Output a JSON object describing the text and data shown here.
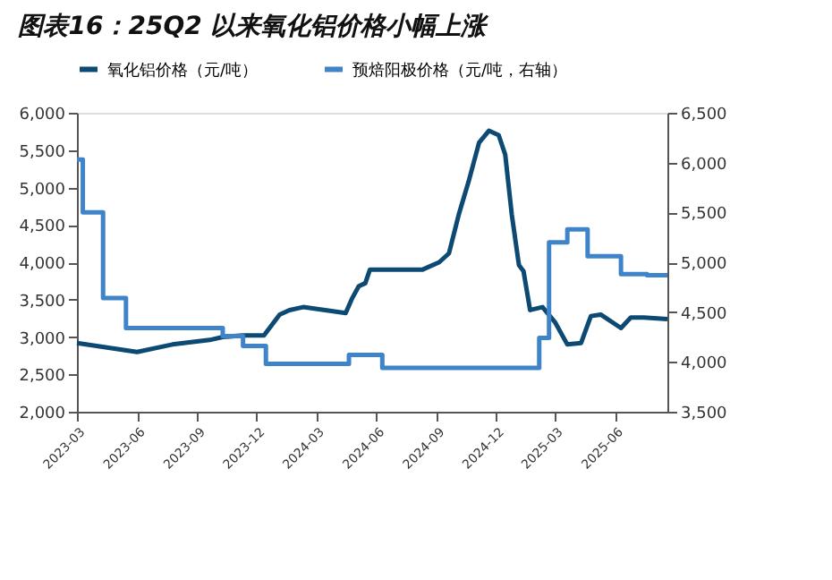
{
  "chart_data": {
    "type": "line",
    "title": "图表16：25Q2 以来氧化铝价格小幅上涨",
    "xlim": [
      "2023-03-01",
      "2025-08-20"
    ],
    "xticks": [
      "2023-03",
      "2023-06",
      "2023-09",
      "2023-12",
      "2024-03",
      "2024-06",
      "2024-09",
      "2024-12",
      "2025-03",
      "2025-06"
    ],
    "ylim": [
      2000,
      6000
    ],
    "yticks": [
      {
        "value": 2000,
        "label": "2,000"
      },
      {
        "value": 2500,
        "label": "2,500"
      },
      {
        "value": 3000,
        "label": "3,000"
      },
      {
        "value": 3500,
        "label": "3,500"
      },
      {
        "value": 4000,
        "label": "4,000"
      },
      {
        "value": 4500,
        "label": "4,500"
      },
      {
        "value": 5000,
        "label": "5,000"
      },
      {
        "value": 5500,
        "label": "5,500"
      },
      {
        "value": 6000,
        "label": "6,000"
      }
    ],
    "y2lim": [
      3500,
      6500
    ],
    "y2ticks": [
      {
        "value": 3500,
        "label": "3,500"
      },
      {
        "value": 4000,
        "label": "4,000"
      },
      {
        "value": 4500,
        "label": "4,500"
      },
      {
        "value": 5000,
        "label": "5,000"
      },
      {
        "value": 5500,
        "label": "5,500"
      },
      {
        "value": 6000,
        "label": "6,000"
      },
      {
        "value": 6500,
        "label": "6,500"
      }
    ],
    "legend": "top",
    "grid": false,
    "marker": "none",
    "line_style": "solid",
    "series": [
      {
        "name": "氧化铝价格（元/吨）",
        "color": "#0d4a73",
        "x": [
          "2023-03-01",
          "2023-06-01",
          "2023-07-25",
          "2023-09-20",
          "2023-10-10",
          "2023-11-10",
          "2023-12-12",
          "2024-01-05",
          "2024-01-20",
          "2024-02-10",
          "2024-04-15",
          "2024-04-25",
          "2024-05-05",
          "2024-05-15",
          "2024-05-22",
          "2024-08-10",
          "2024-09-05",
          "2024-09-20",
          "2024-10-05",
          "2024-10-20",
          "2024-11-05",
          "2024-11-20",
          "2024-12-05",
          "2024-12-15",
          "2024-12-25",
          "2025-01-05",
          "2025-01-12",
          "2025-01-22",
          "2025-02-10",
          "2025-03-01",
          "2025-03-20",
          "2025-04-10",
          "2025-04-25",
          "2025-05-10",
          "2025-06-10",
          "2025-06-25",
          "2025-07-15",
          "2025-08-20"
        ],
        "values": [
          2920,
          2800,
          2900,
          2960,
          3000,
          3020,
          3020,
          3300,
          3360,
          3400,
          3320,
          3520,
          3680,
          3720,
          3900,
          3900,
          4000,
          4120,
          4640,
          5080,
          5600,
          5760,
          5700,
          5440,
          4640,
          3960,
          3880,
          3360,
          3400,
          3200,
          2900,
          2920,
          3280,
          3300,
          3120,
          3260,
          3260,
          3240
        ]
      },
      {
        "name": "预焙阳极价格（元/吨，右轴）",
        "color": "#3f84c8",
        "type": "step",
        "axis": "y2",
        "x": [
          "2023-03-01",
          "2023-03-10",
          "2023-04-10",
          "2023-05-15",
          "2023-10-10",
          "2023-11-10",
          "2023-12-15",
          "2024-04-20",
          "2024-06-10",
          "2025-02-05",
          "2025-02-20",
          "2025-03-20",
          "2025-04-20",
          "2025-06-10",
          "2025-07-20",
          "2025-08-20"
        ],
        "values": [
          6030,
          5500,
          4640,
          4340,
          4260,
          4160,
          3980,
          4070,
          3940,
          4240,
          5200,
          5330,
          5060,
          4880,
          4870,
          4870
        ]
      }
    ]
  }
}
